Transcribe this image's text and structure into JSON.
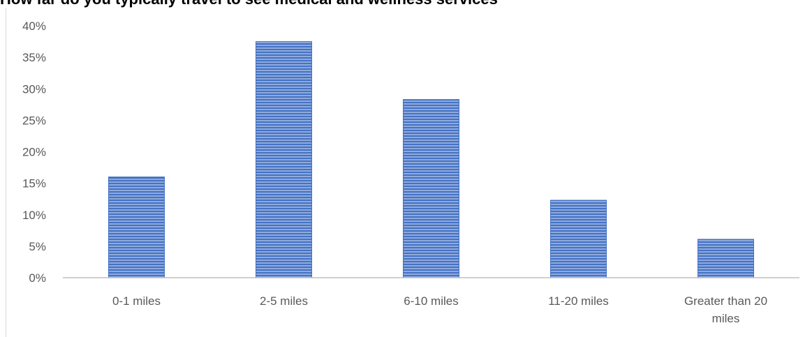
{
  "title": "How far do you typically travel to see medical and wellness services",
  "chart_data": {
    "type": "bar",
    "categories": [
      "0-1 miles",
      "2-5 miles",
      "6-10 miles",
      "11-20 miles",
      "Greater than 20 miles"
    ],
    "values": [
      16,
      37.5,
      28.3,
      12.3,
      6.1
    ],
    "y_ticks": [
      "0%",
      "5%",
      "10%",
      "15%",
      "20%",
      "25%",
      "30%",
      "35%",
      "40%"
    ],
    "ylim": [
      0,
      40
    ],
    "grid": false,
    "legend": "none",
    "bar_color": "#4472c4",
    "bar_fill_color": "#8faadc"
  }
}
